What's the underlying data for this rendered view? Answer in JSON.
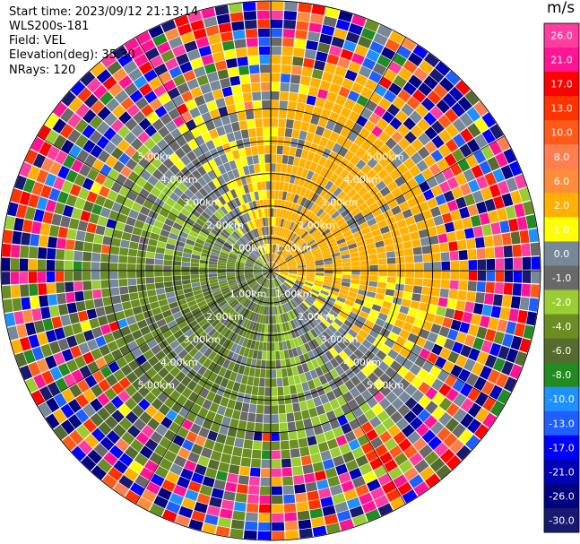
{
  "info": {
    "start_time": "Start time: 2023/09/12 21:13:14",
    "instrument": "WLS200s-181",
    "field": "Field: VEL",
    "elevation": "Elevation(deg): 35.30",
    "nrays": "NRays: 120"
  },
  "chart_data": {
    "type": "heatmap",
    "subtype": "ppi-polar",
    "field": "VEL",
    "n_rays": 120,
    "range_ring_labels": [
      "1.00km",
      "2.00km",
      "3.00km",
      "4.00km",
      "5.00km"
    ],
    "range_rings_km": [
      1,
      2,
      3,
      4,
      5
    ],
    "max_range_km": 5.0,
    "colorbar": {
      "unit": "m/s",
      "position": "right",
      "tick_labels": [
        "26.0",
        "21.0",
        "17.0",
        "13.0",
        "10.0",
        "8.0",
        "6.0",
        "2.0",
        "1.0",
        "0.0",
        "-1.0",
        "-2.0",
        "-4.0",
        "-6.0",
        "-8.0",
        "-10.0",
        "-13.0",
        "-17.0",
        "-21.0",
        "-26.0",
        "-30.0"
      ],
      "bins": [
        {
          "from": 26,
          "to": 30,
          "color": "#ff3ca0"
        },
        {
          "from": 21,
          "to": 26,
          "color": "#ff1493"
        },
        {
          "from": 17,
          "to": 21,
          "color": "#ff0000"
        },
        {
          "from": 13,
          "to": 17,
          "color": "#ff3300"
        },
        {
          "from": 10,
          "to": 13,
          "color": "#ff5a1a"
        },
        {
          "from": 8,
          "to": 10,
          "color": "#ff7f50"
        },
        {
          "from": 6,
          "to": 8,
          "color": "#ff8c3a"
        },
        {
          "from": 2,
          "to": 6,
          "color": "#ffb000"
        },
        {
          "from": 1,
          "to": 2,
          "color": "#ffff00"
        },
        {
          "from": 0,
          "to": 1,
          "color": "#778899"
        },
        {
          "from": -1,
          "to": 0,
          "color": "#696969"
        },
        {
          "from": -2,
          "to": -1,
          "color": "#9acd32"
        },
        {
          "from": -4,
          "to": -2,
          "color": "#6b8e23"
        },
        {
          "from": -6,
          "to": -4,
          "color": "#556b2f"
        },
        {
          "from": -8,
          "to": -6,
          "color": "#228b22"
        },
        {
          "from": -10,
          "to": -8,
          "color": "#1e90ff"
        },
        {
          "from": -13,
          "to": -10,
          "color": "#1f5fff"
        },
        {
          "from": -17,
          "to": -13,
          "color": "#0000ff"
        },
        {
          "from": -21,
          "to": -17,
          "color": "#0000b4"
        },
        {
          "from": -26,
          "to": -21,
          "color": "#000080"
        },
        {
          "from": -30,
          "to": -26,
          "color": "#191970"
        }
      ]
    },
    "description_regions": {
      "northeast_near": "positive 2-8 m/s (yellow-orange)",
      "southwest_near": "negative -2 to -6 m/s (green)",
      "outer_ring": "noisy, full colour range"
    },
    "grid": true
  }
}
